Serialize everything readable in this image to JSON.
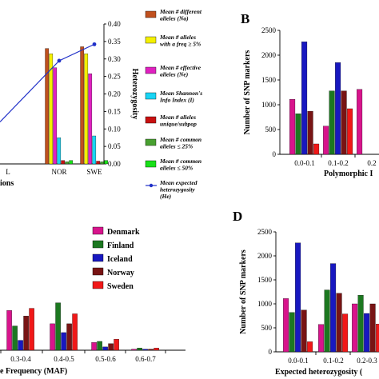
{
  "chart_data": [
    {
      "id": "A",
      "type": "bar",
      "title": "",
      "xlabel": "ions",
      "ylabel": "",
      "y2label": "Heterozygosity",
      "ylim": [
        0,
        0.4
      ],
      "yticks": [
        "0.00",
        "0.05",
        "0.10",
        "0.15",
        "0.20",
        "0.25",
        "0.30",
        "0.35",
        "0.40"
      ],
      "categories": [
        "L",
        "NOR",
        "SWE"
      ],
      "series": [
        {
          "name": "Mean # different alleles (Na)",
          "color": "#c0501e",
          "values": [
            null,
            0.33,
            0.335
          ]
        },
        {
          "name": "Mean # alleles with a freq ≥ 5%",
          "color": "#f4f000",
          "values": [
            null,
            0.315,
            0.315
          ]
        },
        {
          "name": "Mean # effective alleles (Ne)",
          "color": "#e020c0",
          "values": [
            null,
            0.275,
            0.258
          ]
        },
        {
          "name": "Mean Shannon's Info Index (I)",
          "color": "#18d4f4",
          "values": [
            null,
            0.075,
            0.08
          ]
        },
        {
          "name": "Mean # alleles unique/subpop",
          "color": "#c81010",
          "values": [
            null,
            0.01,
            0.008
          ]
        },
        {
          "name": "Mean # common alleles ≤ 25%",
          "color": "#48a030",
          "values": [
            null,
            0.006,
            0.006
          ]
        },
        {
          "name": "Mean # common alleles ≤ 50%",
          "color": "#18e018",
          "values": [
            null,
            0.01,
            0.01
          ]
        }
      ],
      "line": {
        "name": "Mean expected heterozygosity (He)",
        "color": "#2030c8",
        "values": [
          null,
          0.295,
          0.342
        ]
      }
    },
    {
      "id": "B",
      "type": "bar",
      "title": "",
      "xlabel": "Polymorphic I",
      "ylabel": "Number of SNP markers",
      "ylim": [
        0,
        2500
      ],
      "yticks": [
        "0",
        "500",
        "1000",
        "1500",
        "2000",
        "2500"
      ],
      "categories": [
        "0.0-0.1",
        "0.1-0.2",
        "0.2"
      ],
      "series": [
        {
          "name": "Denmark",
          "color": "#d8148c",
          "values": [
            1110,
            570,
            1310
          ]
        },
        {
          "name": "Finland",
          "color": "#1c7820",
          "values": [
            820,
            1280,
            null
          ]
        },
        {
          "name": "Iceland",
          "color": "#1818c0",
          "values": [
            2270,
            1850,
            null
          ]
        },
        {
          "name": "Norway",
          "color": "#781414",
          "values": [
            870,
            1280,
            null
          ]
        },
        {
          "name": "Sweden",
          "color": "#f01818",
          "values": [
            210,
            920,
            null
          ]
        }
      ]
    },
    {
      "id": "C",
      "type": "bar",
      "title": "",
      "xlabel": "e Frequency (MAF)",
      "ylabel": "",
      "categories": [
        "0.3-0.4",
        "0.4-0.5",
        "0.5-0.6",
        "0.6-0.7"
      ],
      "series": [
        {
          "name": "Denmark",
          "color": "#d8148c",
          "values": [
            0.36,
            0.24,
            0.07,
            0.01
          ]
        },
        {
          "name": "Finland",
          "color": "#1c7820",
          "values": [
            0.22,
            0.43,
            0.08,
            0.02
          ]
        },
        {
          "name": "Iceland",
          "color": "#1818c0",
          "values": [
            0.09,
            0.16,
            0.03,
            0.01
          ]
        },
        {
          "name": "Norway",
          "color": "#781414",
          "values": [
            0.31,
            0.24,
            0.06,
            0.01
          ]
        },
        {
          "name": "Sweden",
          "color": "#f01818",
          "values": [
            0.38,
            0.33,
            0.1,
            0.02
          ]
        }
      ]
    },
    {
      "id": "D",
      "type": "bar",
      "title": "",
      "xlabel": "Expected heterozygosity (",
      "ylabel": "Number of SNP markers",
      "ylim": [
        0,
        2500
      ],
      "yticks": [
        "0",
        "500",
        "1000",
        "1500",
        "2000",
        "2500"
      ],
      "categories": [
        "0.0-0.1",
        "0.1-0.2",
        "0.2-0.3"
      ],
      "series": [
        {
          "name": "Denmark",
          "color": "#d8148c",
          "values": [
            1110,
            570,
            1000
          ]
        },
        {
          "name": "Finland",
          "color": "#1c7820",
          "values": [
            820,
            1290,
            1180
          ]
        },
        {
          "name": "Iceland",
          "color": "#1818c0",
          "values": [
            2270,
            1840,
            800
          ]
        },
        {
          "name": "Norway",
          "color": "#781414",
          "values": [
            870,
            1220,
            1000
          ]
        },
        {
          "name": "Sweden",
          "color": "#f01818",
          "values": [
            210,
            790,
            580
          ]
        }
      ]
    }
  ],
  "panels": {
    "b": "B",
    "d": "D"
  },
  "legend_c": [
    {
      "label": "Denmark",
      "color": "#d8148c"
    },
    {
      "label": "Finland",
      "color": "#1c7820"
    },
    {
      "label": "Iceland",
      "color": "#1818c0"
    },
    {
      "label": "Norway",
      "color": "#781414"
    },
    {
      "label": "Sweden",
      "color": "#f01818"
    }
  ]
}
